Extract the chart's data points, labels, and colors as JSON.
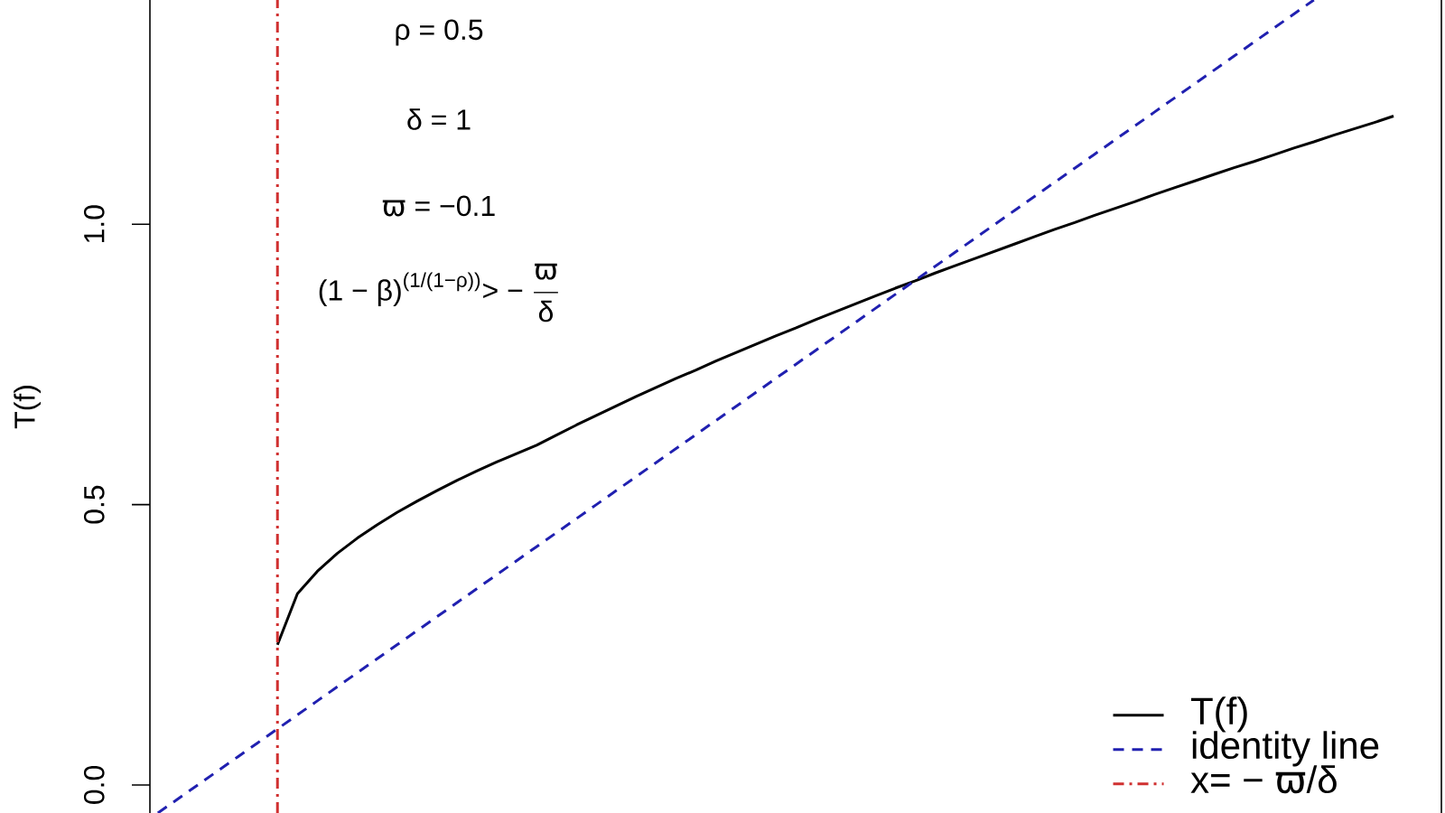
{
  "chart_data": {
    "type": "line",
    "ylabel": "T(f)",
    "annotations": [
      "ρ = 0.5",
      "δ = 1",
      "ϖ = −0.1",
      "\\text{(1 − β)}^{\\text{(1/(1−ρ))}}\\text{> − }\\frac{\\text{ϖ}}{\\text{δ}}"
    ],
    "categories": [
      null,
      null,
      null,
      null,
      null,
      null,
      null,
      null,
      null,
      null,
      null,
      null,
      null,
      null,
      null,
      null,
      null,
      null,
      null,
      null,
      null,
      null,
      null,
      null,
      null,
      null,
      null,
      null,
      null,
      null,
      null,
      null,
      null,
      null,
      null,
      null,
      null,
      null,
      null,
      null,
      null,
      null,
      null,
      null,
      null,
      null,
      null,
      null,
      null,
      null,
      null,
      null,
      null,
      null,
      null,
      null,
      null,
      null,
      null,
      null,
      null,
      null,
      null,
      null,
      null
    ],
    "ylim": [
      -0.05,
      1.4
    ],
    "yticks": [
      {
        "value": 0,
        "label": "0.0"
      },
      {
        "value": 0.5,
        "label": "0.5"
      },
      {
        "value": 1,
        "label": "1.0"
      }
    ],
    "tick_labels": "y",
    "legend": "bottom right",
    "series": [
      {
        "name": "T(f)",
        "color": "#000000",
        "values": [
          null,
          null,
          null,
          null,
          null,
          null,
          0.25,
          0.341,
          0.381,
          0.413,
          0.44,
          0.464,
          0.486,
          0.506,
          0.525,
          0.543,
          0.56,
          0.576,
          0.591,
          0.606,
          0.624,
          0.642,
          0.659,
          0.676,
          0.693,
          0.709,
          0.725,
          0.74,
          0.756,
          0.771,
          0.786,
          0.801,
          0.815,
          0.83,
          0.844,
          0.858,
          0.872,
          0.886,
          0.899,
          0.913,
          0.926,
          0.939,
          0.952,
          0.965,
          0.978,
          0.991,
          1.003,
          1.016,
          1.028,
          1.04,
          1.053,
          1.065,
          1.077,
          1.089,
          1.101,
          1.112,
          1.124,
          1.136,
          1.147,
          1.159,
          1.17,
          1.181,
          1.193,
          null,
          null
        ]
      },
      {
        "name": "identity line",
        "color": "#2020b0",
        "line_style": "dashed",
        "values": [
          -0.05,
          -0.025,
          0,
          0.025,
          0.05,
          0.075,
          0.1,
          0.125,
          0.15,
          0.175,
          0.2,
          0.225,
          0.25,
          0.275,
          0.3,
          0.325,
          0.35,
          0.375,
          0.4,
          0.425,
          0.45,
          0.475,
          0.5,
          0.525,
          0.55,
          0.575,
          0.6,
          0.625,
          0.65,
          0.675,
          0.7,
          0.725,
          0.75,
          0.775,
          0.8,
          0.825,
          0.85,
          0.875,
          0.9,
          0.925,
          0.95,
          0.975,
          1,
          1.025,
          1.05,
          1.075,
          1.1,
          1.125,
          1.15,
          1.175,
          1.2,
          1.225,
          1.25,
          1.275,
          1.3,
          1.325,
          1.35,
          1.375,
          1.4,
          null,
          null,
          null,
          null,
          null,
          null
        ]
      }
    ],
    "ref_lines": [
      {
        "axis": "x",
        "label": "x= − ϖ/δ",
        "color": "#d03030",
        "line_style": "dashdot"
      }
    ]
  }
}
